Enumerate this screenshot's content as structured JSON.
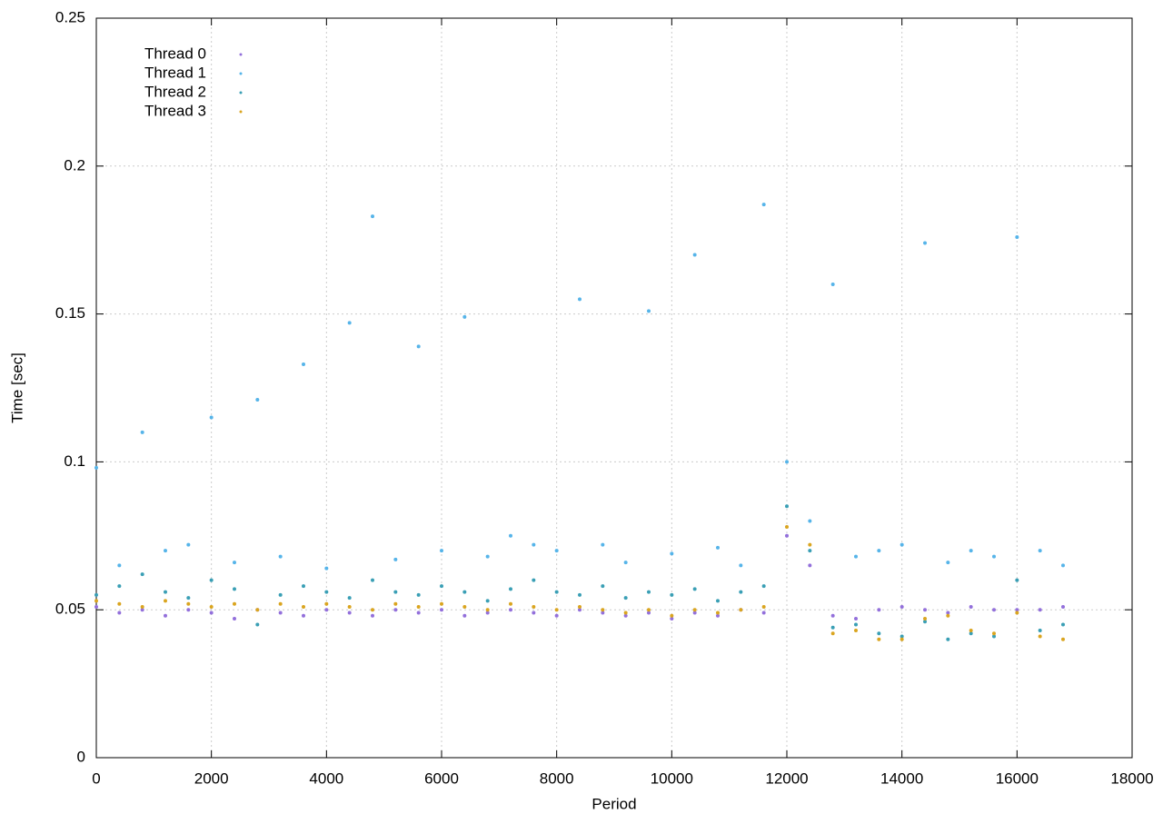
{
  "chart_data": {
    "type": "scatter",
    "x_label": "Period",
    "y_label": "Time [sec]",
    "x": [
      0,
      400,
      800,
      1200,
      1600,
      2000,
      2400,
      2800,
      3200,
      3600,
      4000,
      4400,
      4800,
      5200,
      5600,
      6000,
      6400,
      6800,
      7200,
      7600,
      8000,
      8400,
      8800,
      9200,
      9600,
      10000,
      10400,
      10800,
      11200,
      11600,
      12000,
      12400,
      12800,
      13200,
      13600,
      14000,
      14400,
      14800,
      15200,
      15600,
      16000,
      16400,
      16800
    ],
    "series": [
      {
        "name": "Thread 0",
        "color": "#9370db",
        "values": [
          0.051,
          0.049,
          0.05,
          0.048,
          0.05,
          0.049,
          0.047,
          0.05,
          0.049,
          0.048,
          0.05,
          0.049,
          0.048,
          0.05,
          0.049,
          0.05,
          0.048,
          0.049,
          0.05,
          0.049,
          0.048,
          0.05,
          0.049,
          0.048,
          0.049,
          0.047,
          0.049,
          0.048,
          0.05,
          0.049,
          0.075,
          0.065,
          0.048,
          0.047,
          0.05,
          0.051,
          0.05,
          0.049,
          0.051,
          0.05,
          0.05,
          0.05,
          0.051
        ]
      },
      {
        "name": "Thread 1",
        "color": "#56b4e9",
        "values": [
          0.098,
          0.065,
          0.11,
          0.07,
          0.072,
          0.115,
          0.066,
          0.121,
          0.068,
          0.133,
          0.064,
          0.147,
          0.183,
          0.067,
          0.139,
          0.07,
          0.149,
          0.068,
          0.075,
          0.072,
          0.07,
          0.155,
          0.072,
          0.066,
          0.151,
          0.069,
          0.17,
          0.071,
          0.065,
          0.187,
          0.1,
          0.08,
          0.16,
          0.068,
          0.07,
          0.072,
          0.174,
          0.066,
          0.07,
          0.068,
          0.176,
          0.07,
          0.065
        ]
      },
      {
        "name": "Thread 2",
        "color": "#3a9fb5",
        "values": [
          0.055,
          0.058,
          0.062,
          0.056,
          0.054,
          0.06,
          0.057,
          0.045,
          0.055,
          0.058,
          0.056,
          0.054,
          0.06,
          0.056,
          0.055,
          0.058,
          0.056,
          0.053,
          0.057,
          0.06,
          0.056,
          0.055,
          0.058,
          0.054,
          0.056,
          0.055,
          0.057,
          0.053,
          0.056,
          0.058,
          0.085,
          0.07,
          0.044,
          0.045,
          0.042,
          0.041,
          0.046,
          0.04,
          0.042,
          0.041,
          0.06,
          0.043,
          0.045
        ]
      },
      {
        "name": "Thread 3",
        "color": "#daa520",
        "values": [
          0.053,
          0.052,
          0.051,
          0.053,
          0.052,
          0.051,
          0.052,
          0.05,
          0.052,
          0.051,
          0.052,
          0.051,
          0.05,
          0.052,
          0.051,
          0.052,
          0.051,
          0.05,
          0.052,
          0.051,
          0.05,
          0.051,
          0.05,
          0.049,
          0.05,
          0.048,
          0.05,
          0.049,
          0.05,
          0.051,
          0.078,
          0.072,
          0.042,
          0.043,
          0.04,
          0.04,
          0.047,
          0.048,
          0.043,
          0.042,
          0.049,
          0.041,
          0.04
        ]
      }
    ],
    "xlim": [
      0,
      18000
    ],
    "xticks": [
      0,
      2000,
      4000,
      6000,
      8000,
      10000,
      12000,
      14000,
      16000,
      18000
    ],
    "ylim": [
      0,
      0.25
    ],
    "yticks": [
      0,
      0.05,
      0.1,
      0.15,
      0.2,
      0.25
    ],
    "grid": true,
    "legend": "top-left"
  }
}
